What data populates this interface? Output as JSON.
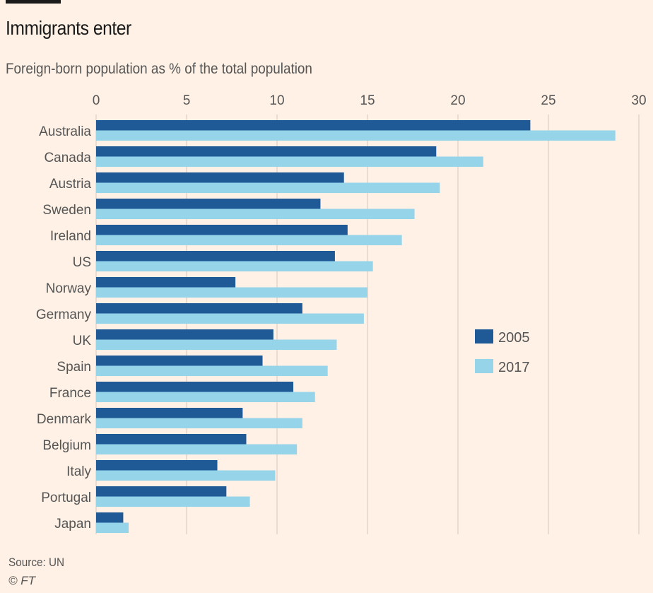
{
  "chart_data": {
    "type": "bar",
    "orientation": "horizontal",
    "title": "Immigrants enter",
    "subtitle": "Foreign-born population as % of the total population",
    "categories": [
      "Australia",
      "Canada",
      "Austria",
      "Sweden",
      "Ireland",
      "US",
      "Norway",
      "Germany",
      "UK",
      "Spain",
      "France",
      "Denmark",
      "Belgium",
      "Italy",
      "Portugal",
      "Japan"
    ],
    "series": [
      {
        "name": "2005",
        "color": "#1f5a96",
        "values": [
          24.0,
          18.8,
          13.7,
          12.4,
          13.9,
          13.2,
          7.7,
          11.4,
          9.8,
          9.2,
          10.9,
          8.1,
          8.3,
          6.7,
          7.2,
          1.5
        ]
      },
      {
        "name": "2017",
        "color": "#96d4ea",
        "values": [
          28.7,
          21.4,
          19.0,
          17.6,
          16.9,
          15.3,
          15.0,
          14.8,
          13.3,
          12.8,
          12.1,
          11.4,
          11.1,
          9.9,
          8.5,
          1.8
        ]
      }
    ],
    "xlim": [
      0,
      30
    ],
    "xticks": [
      "0",
      "5",
      "10",
      "15",
      "20",
      "25",
      "30"
    ],
    "grid": true,
    "legend_placement": "right"
  },
  "source": "Source: UN",
  "credit": "© FT"
}
